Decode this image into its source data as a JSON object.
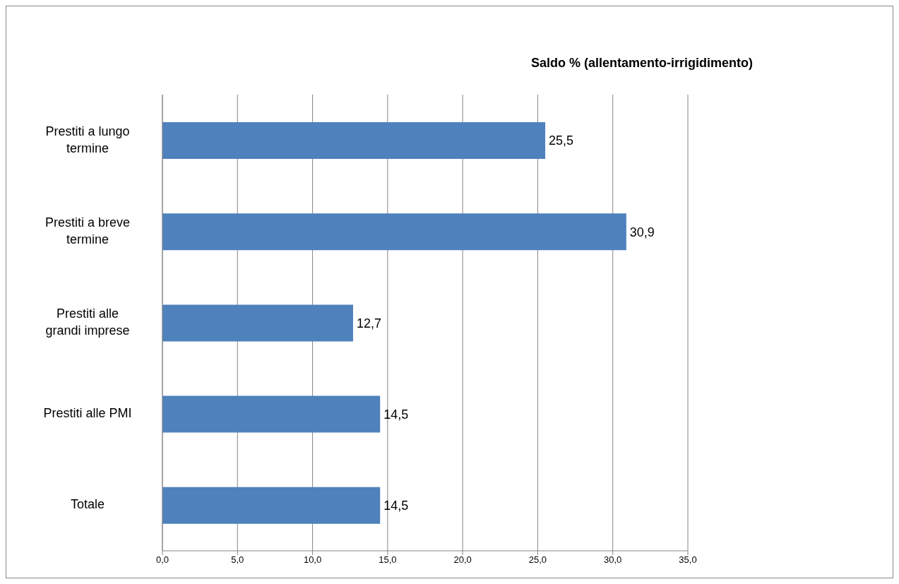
{
  "chart_data": {
    "type": "bar",
    "orientation": "horizontal",
    "title": "Saldo % (allentamento-irrigidimento)",
    "categories": [
      "Prestiti a lungo termine",
      "Prestiti a breve termine",
      "Prestiti alle grandi imprese",
      "Prestiti alle PMI",
      "Totale"
    ],
    "values": [
      25.5,
      30.9,
      12.7,
      14.5,
      14.5
    ],
    "value_labels": [
      "25,5",
      "30,9",
      "12,7",
      "14,5",
      "14,5"
    ],
    "color": "#4f81bd",
    "xlim": [
      0,
      35
    ],
    "xticks": [
      {
        "value": 0,
        "label": "0,0"
      },
      {
        "value": 5,
        "label": "5,0"
      },
      {
        "value": 10,
        "label": "10,0"
      },
      {
        "value": 15,
        "label": "15,0"
      },
      {
        "value": 20,
        "label": "20,0"
      },
      {
        "value": 25,
        "label": "25,0"
      },
      {
        "value": 30,
        "label": "30,0"
      },
      {
        "value": 35,
        "label": "35,0"
      }
    ],
    "grid": "x"
  }
}
